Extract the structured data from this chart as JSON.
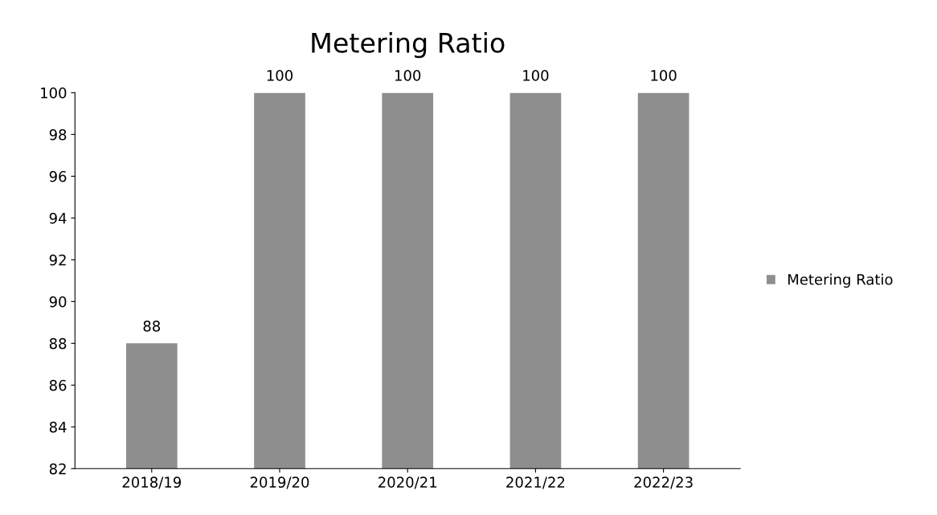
{
  "chart_data": {
    "type": "bar",
    "title": "Metering Ratio",
    "categories": [
      "2018/19",
      "2019/20",
      "2020/21",
      "2021/22",
      "2022/23"
    ],
    "series": [
      {
        "name": "Metering Ratio",
        "color": "#8e8e8e",
        "values": [
          88,
          100,
          100,
          100,
          100
        ]
      }
    ],
    "ylim": [
      82,
      100
    ],
    "yticks": [
      82,
      84,
      86,
      88,
      90,
      92,
      94,
      96,
      98,
      100
    ],
    "data_labels": true,
    "grid": false,
    "legend": "right"
  }
}
